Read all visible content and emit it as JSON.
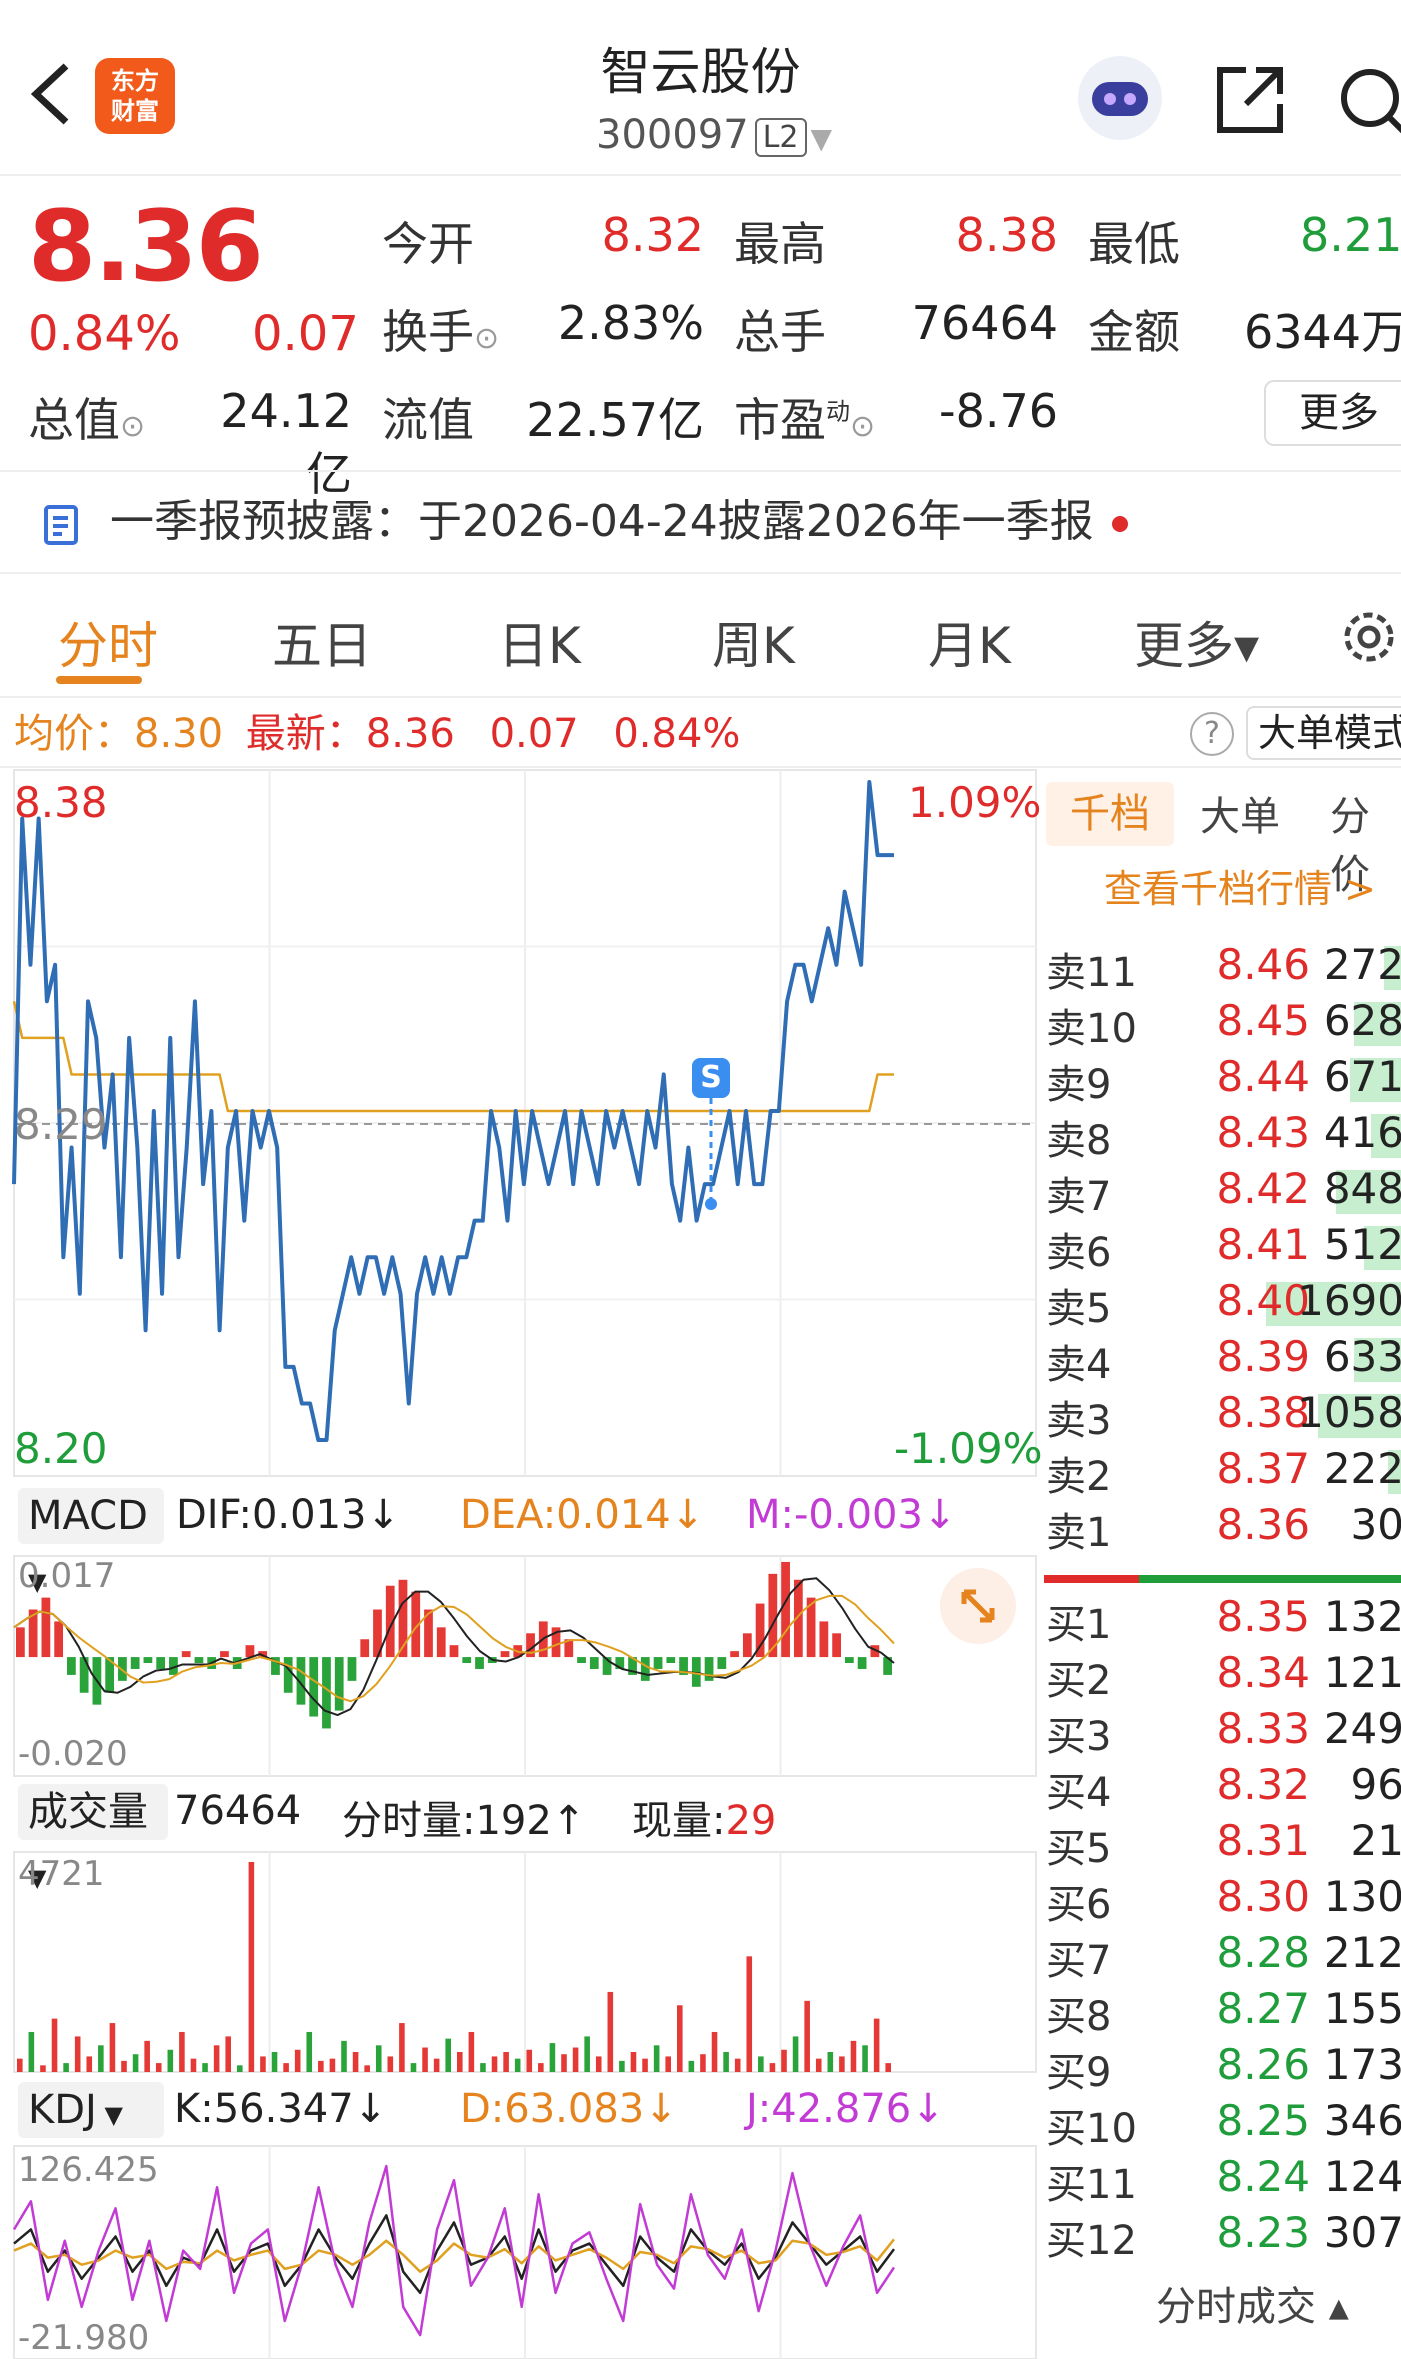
{
  "header": {
    "title": "智云股份",
    "code": "300097",
    "level": "L2",
    "logo_line1": "东方",
    "logo_line2": "财富"
  },
  "quote": {
    "price": "8.36",
    "change_pct": "0.84%",
    "change": "0.07",
    "open_label": "今开",
    "open": "8.32",
    "high_label": "最高",
    "high": "8.38",
    "low_label": "最低",
    "low": "8.21",
    "turnover_label": "换手",
    "turnover": "2.83%",
    "volume_label": "总手",
    "volume": "76464",
    "amount_label": "金额",
    "amount": "6344万",
    "mktcap_label": "总值",
    "mktcap": "24.12亿",
    "float_label": "流值",
    "float": "22.57亿",
    "pe_label": "市盈",
    "pe_sup": "动",
    "pe": "-8.76",
    "more_label": "更多"
  },
  "notice": {
    "text": "一季报预披露：于2026-04-24披露2026年一季报"
  },
  "tabs": [
    "分时",
    "五日",
    "日K",
    "周K",
    "月K",
    "更多▾"
  ],
  "inforow": {
    "avg_label": "均价：",
    "avg": "8.30",
    "last_label": "最新：",
    "last": "8.36",
    "chg": "0.07",
    "pct": "0.84%",
    "mode": "大单模式"
  },
  "chart_labels": {
    "top_price": "8.38",
    "mid_price": "8.29",
    "low_price": "8.20",
    "top_pct": "1.09%",
    "low_pct": "-1.09%",
    "marker": "S"
  },
  "chart_data": [
    {
      "type": "line",
      "name": "intraday",
      "ylim": [
        8.2,
        8.38
      ],
      "series": [
        {
          "name": "price",
          "color": "#2f6db5",
          "values": [
            8.27,
            8.37,
            8.33,
            8.37,
            8.32,
            8.33,
            8.25,
            8.28,
            8.24,
            8.32,
            8.31,
            8.28,
            8.3,
            8.25,
            8.31,
            8.28,
            8.23,
            8.29,
            8.24,
            8.31,
            8.25,
            8.28,
            8.32,
            8.27,
            8.29,
            8.23,
            8.28,
            8.29,
            8.26,
            8.29,
            8.28,
            8.29,
            8.28,
            8.22,
            8.22,
            8.21,
            8.21,
            8.2,
            8.2,
            8.23,
            8.24,
            8.25,
            8.24,
            8.25,
            8.25,
            8.24,
            8.25,
            8.24,
            8.21,
            8.24,
            8.25,
            8.24,
            8.25,
            8.24,
            8.25,
            8.25,
            8.26,
            8.26,
            8.29,
            8.28,
            8.26,
            8.29,
            8.27,
            8.29,
            8.28,
            8.27,
            8.28,
            8.29,
            8.27,
            8.29,
            8.28,
            8.27,
            8.29,
            8.28,
            8.29,
            8.28,
            8.27,
            8.29,
            8.28,
            8.3,
            8.27,
            8.26,
            8.28,
            8.26,
            8.27,
            8.27,
            8.28,
            8.29,
            8.27,
            8.29,
            8.27,
            8.27,
            8.29,
            8.29,
            8.32,
            8.33,
            8.33,
            8.32,
            8.33,
            8.34,
            8.33,
            8.35,
            8.34,
            8.33,
            8.38,
            8.36,
            8.36,
            8.36
          ]
        },
        {
          "name": "均价",
          "color": "#e0a020",
          "values": [
            8.32,
            8.31,
            8.31,
            8.31,
            8.31,
            8.31,
            8.31,
            8.3,
            8.3,
            8.3,
            8.3,
            8.3,
            8.3,
            8.3,
            8.3,
            8.3,
            8.3,
            8.3,
            8.3,
            8.3,
            8.3,
            8.3,
            8.3,
            8.3,
            8.3,
            8.3,
            8.29,
            8.29,
            8.29,
            8.29,
            8.29,
            8.29,
            8.29,
            8.29,
            8.29,
            8.29,
            8.29,
            8.29,
            8.29,
            8.29,
            8.29,
            8.29,
            8.29,
            8.29,
            8.29,
            8.29,
            8.29,
            8.29,
            8.29,
            8.29,
            8.29,
            8.29,
            8.29,
            8.29,
            8.29,
            8.29,
            8.29,
            8.29,
            8.29,
            8.29,
            8.29,
            8.29,
            8.29,
            8.29,
            8.29,
            8.29,
            8.29,
            8.29,
            8.29,
            8.29,
            8.29,
            8.29,
            8.29,
            8.29,
            8.29,
            8.29,
            8.29,
            8.29,
            8.29,
            8.29,
            8.29,
            8.29,
            8.29,
            8.29,
            8.29,
            8.29,
            8.29,
            8.29,
            8.29,
            8.29,
            8.29,
            8.29,
            8.29,
            8.29,
            8.29,
            8.29,
            8.29,
            8.29,
            8.29,
            8.29,
            8.29,
            8.29,
            8.29,
            8.29,
            8.29,
            8.3,
            8.3,
            8.3
          ]
        }
      ]
    },
    {
      "type": "bar",
      "name": "MACD",
      "ylim": [
        -0.02,
        0.017
      ],
      "values": [
        0.005,
        0.008,
        0.01,
        0.006,
        -0.003,
        -0.006,
        -0.008,
        -0.006,
        -0.004,
        -0.002,
        -0.001,
        -0.002,
        -0.003,
        0.001,
        -0.001,
        -0.002,
        0.001,
        -0.002,
        0.002,
        0.001,
        -0.003,
        -0.006,
        -0.008,
        -0.01,
        -0.012,
        -0.009,
        -0.004,
        0.003,
        0.008,
        0.012,
        0.013,
        0.011,
        0.008,
        0.005,
        0.002,
        -0.001,
        -0.002,
        -0.001,
        0.001,
        0.002,
        0.004,
        0.006,
        0.005,
        0.003,
        -0.001,
        -0.002,
        -0.003,
        -0.002,
        -0.003,
        -0.004,
        -0.002,
        -0.001,
        -0.003,
        -0.005,
        -0.004,
        -0.002,
        0.001,
        0.004,
        0.009,
        0.014,
        0.016,
        0.013,
        0.01,
        0.006,
        0.004,
        -0.001,
        -0.002,
        0.002,
        -0.003
      ]
    },
    {
      "type": "bar",
      "name": "成交量",
      "ylim": [
        0,
        4721
      ],
      "values": [
        300,
        900,
        150,
        1200,
        200,
        800,
        350,
        600,
        1100,
        250,
        400,
        700,
        200,
        500,
        900,
        300,
        200,
        600,
        800,
        150,
        4721,
        350,
        450,
        200,
        500,
        900,
        250,
        300,
        700,
        450,
        150,
        600,
        350,
        1100,
        200,
        550,
        300,
        750,
        450,
        900,
        200,
        350,
        450,
        300,
        500,
        200,
        650,
        400,
        550,
        800,
        350,
        1800,
        250,
        450,
        300,
        600,
        350,
        1500,
        250,
        400,
        900,
        450,
        300,
        2600,
        350,
        200,
        500,
        800,
        1600,
        300,
        450,
        350,
        700,
        600,
        1200,
        200
      ]
    },
    {
      "type": "line",
      "name": "KDJ",
      "ylim": [
        -21.98,
        126.425
      ],
      "series": [
        {
          "name": "K",
          "color": "#222",
          "values": [
            60,
            70,
            40,
            55,
            35,
            50,
            65,
            40,
            55,
            30,
            50,
            45,
            70,
            40,
            55,
            60,
            30,
            45,
            70,
            50,
            35,
            60,
            80,
            40,
            25,
            55,
            75,
            45,
            50,
            65,
            35,
            70,
            40,
            55,
            60,
            45,
            30,
            65,
            50,
            40,
            70,
            55,
            45,
            60,
            35,
            50,
            75,
            60,
            45,
            55,
            65,
            40,
            56
          ]
        },
        {
          "name": "D",
          "color": "#e0a020",
          "values": [
            55,
            60,
            50,
            52,
            45,
            48,
            55,
            50,
            52,
            42,
            47,
            46,
            55,
            48,
            52,
            55,
            42,
            45,
            55,
            52,
            45,
            52,
            62,
            52,
            40,
            48,
            60,
            52,
            50,
            56,
            46,
            58,
            48,
            52,
            56,
            50,
            42,
            54,
            52,
            46,
            58,
            56,
            50,
            55,
            46,
            48,
            62,
            60,
            52,
            54,
            58,
            48,
            63
          ]
        },
        {
          "name": "J",
          "color": "#c23bd4",
          "values": [
            70,
            90,
            20,
            62,
            15,
            55,
            85,
            20,
            62,
            5,
            55,
            42,
            100,
            25,
            60,
            70,
            5,
            45,
            100,
            45,
            15,
            75,
            115,
            15,
            -5,
            70,
            105,
            30,
            50,
            85,
            15,
            95,
            25,
            60,
            68,
            35,
            5,
            88,
            45,
            28,
            95,
            52,
            35,
            70,
            12,
            55,
            110,
            60,
            30,
            58,
            80,
            25,
            43
          ]
        }
      ]
    }
  ],
  "macd": {
    "selector": "MACD",
    "dif_label": "DIF:",
    "dif": "0.013↓",
    "dea_label": "DEA:",
    "dea": "0.014↓",
    "m_label": "M:",
    "m": "-0.003↓",
    "ytop": "0.017",
    "ybot": "-0.020"
  },
  "vol": {
    "selector": "成交量",
    "total": "76464",
    "tick_label": "分时量:",
    "tick": "192↑",
    "now_label": "现量:",
    "now": "29",
    "ytop": "4721"
  },
  "kdj": {
    "selector": "KDJ",
    "k_label": "K:",
    "k": "56.347↓",
    "d_label": "D:",
    "d": "63.083↓",
    "j_label": "J:",
    "j": "42.876↓",
    "ytop": "126.425",
    "ybot": "-21.980"
  },
  "orderbook": {
    "tabs": [
      "千档",
      "大单",
      "分价"
    ],
    "link": "查看千档行情 >",
    "sells": [
      {
        "n": "卖11",
        "p": "8.46",
        "v": "272",
        "f": 0.16
      },
      {
        "n": "卖10",
        "p": "8.45",
        "v": "628",
        "f": 0.37
      },
      {
        "n": "卖9",
        "p": "8.44",
        "v": "671",
        "f": 0.4
      },
      {
        "n": "卖8",
        "p": "8.43",
        "v": "416",
        "f": 0.25
      },
      {
        "n": "卖7",
        "p": "8.42",
        "v": "848",
        "f": 0.5
      },
      {
        "n": "卖6",
        "p": "8.41",
        "v": "512",
        "f": 0.3
      },
      {
        "n": "卖5",
        "p": "8.40",
        "v": "1690",
        "f": 1.0
      },
      {
        "n": "卖4",
        "p": "8.39",
        "v": "633",
        "f": 0.37
      },
      {
        "n": "卖3",
        "p": "8.38",
        "v": "1058",
        "f": 0.63
      },
      {
        "n": "卖2",
        "p": "8.37",
        "v": "222",
        "f": 0.13
      },
      {
        "n": "卖1",
        "p": "8.36",
        "v": "30",
        "f": 0.02
      }
    ],
    "buys": [
      {
        "n": "买1",
        "p": "8.35",
        "v": "132"
      },
      {
        "n": "买2",
        "p": "8.34",
        "v": "121"
      },
      {
        "n": "买3",
        "p": "8.33",
        "v": "249"
      },
      {
        "n": "买4",
        "p": "8.32",
        "v": "96"
      },
      {
        "n": "买5",
        "p": "8.31",
        "v": "21"
      },
      {
        "n": "买6",
        "p": "8.30",
        "v": "130"
      },
      {
        "n": "买7",
        "p": "8.28",
        "v": "212"
      },
      {
        "n": "买8",
        "p": "8.27",
        "v": "155"
      },
      {
        "n": "买9",
        "p": "8.26",
        "v": "173"
      },
      {
        "n": "买10",
        "p": "8.25",
        "v": "346"
      },
      {
        "n": "买11",
        "p": "8.24",
        "v": "124"
      },
      {
        "n": "买12",
        "p": "8.23",
        "v": "307"
      }
    ],
    "footer": "分时成交 ▴"
  }
}
